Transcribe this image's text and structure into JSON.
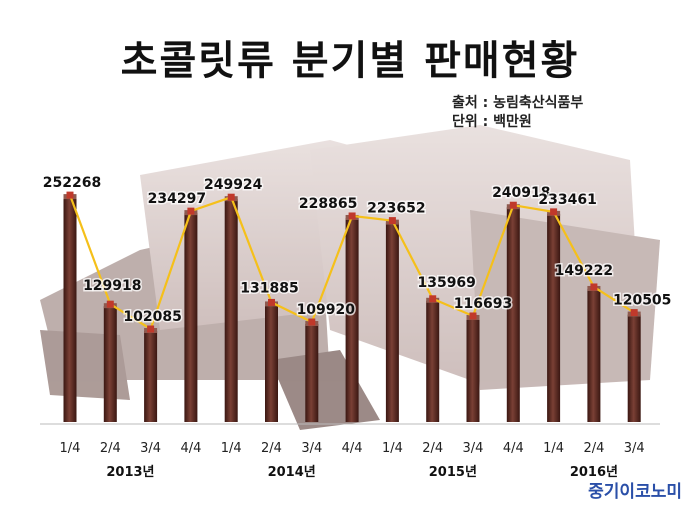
{
  "title": "초콜릿류 분기별 판매현황",
  "source": "출처 : 농림축산식품부",
  "unit": "단위 : 백만원",
  "watermark": "중기이코노미",
  "colors": {
    "bar": "#5a2b22",
    "line": "#f5c01a",
    "marker": "#c0392b",
    "background_image": "chocolate-pieces"
  },
  "chart_data": {
    "type": "bar",
    "overlay": "line",
    "title": "초콜릿류 분기별 판매현황",
    "categories": [
      "1/4",
      "2/4",
      "3/4",
      "4/4",
      "1/4",
      "2/4",
      "3/4",
      "4/4",
      "1/4",
      "2/4",
      "3/4",
      "4/4",
      "1/4",
      "2/4",
      "3/4"
    ],
    "year_groups": [
      {
        "label": "2013년",
        "start": 0,
        "end": 3
      },
      {
        "label": "2014년",
        "start": 4,
        "end": 7
      },
      {
        "label": "2015년",
        "start": 8,
        "end": 11
      },
      {
        "label": "2016년",
        "start": 12,
        "end": 14
      }
    ],
    "values": [
      252268,
      129918,
      102085,
      234297,
      249924,
      131885,
      109920,
      228865,
      223652,
      135969,
      116693,
      240918,
      233461,
      149222,
      120505
    ],
    "ylim": [
      0,
      275000
    ],
    "grid": false,
    "legend": "none"
  }
}
